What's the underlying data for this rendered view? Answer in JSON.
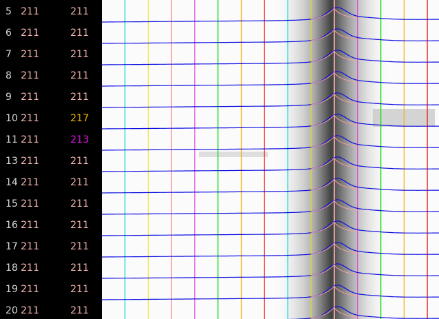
{
  "rows": [
    {
      "lane": "5",
      "a": "211",
      "b": "211"
    },
    {
      "lane": "6",
      "a": "211",
      "b": "211"
    },
    {
      "lane": "7",
      "a": "211",
      "b": "211"
    },
    {
      "lane": "8",
      "a": "211",
      "b": "211"
    },
    {
      "lane": "9",
      "a": "211",
      "b": "211"
    },
    {
      "lane": "10",
      "a": "211",
      "b": "217",
      "b_color": "#f0b400"
    },
    {
      "lane": "11",
      "a": "211",
      "b": "213",
      "b_color": "#e010e0"
    },
    {
      "lane": "13",
      "a": "211",
      "b": "211"
    },
    {
      "lane": "14",
      "a": "211",
      "b": "211"
    },
    {
      "lane": "15",
      "a": "211",
      "b": "211"
    },
    {
      "lane": "16",
      "a": "211",
      "b": "211"
    },
    {
      "lane": "17",
      "a": "211",
      "b": "211"
    },
    {
      "lane": "18",
      "a": "211",
      "b": "211"
    },
    {
      "lane": "19",
      "a": "211",
      "b": "211"
    },
    {
      "lane": "20",
      "a": "211",
      "b": "211"
    }
  ]
}
